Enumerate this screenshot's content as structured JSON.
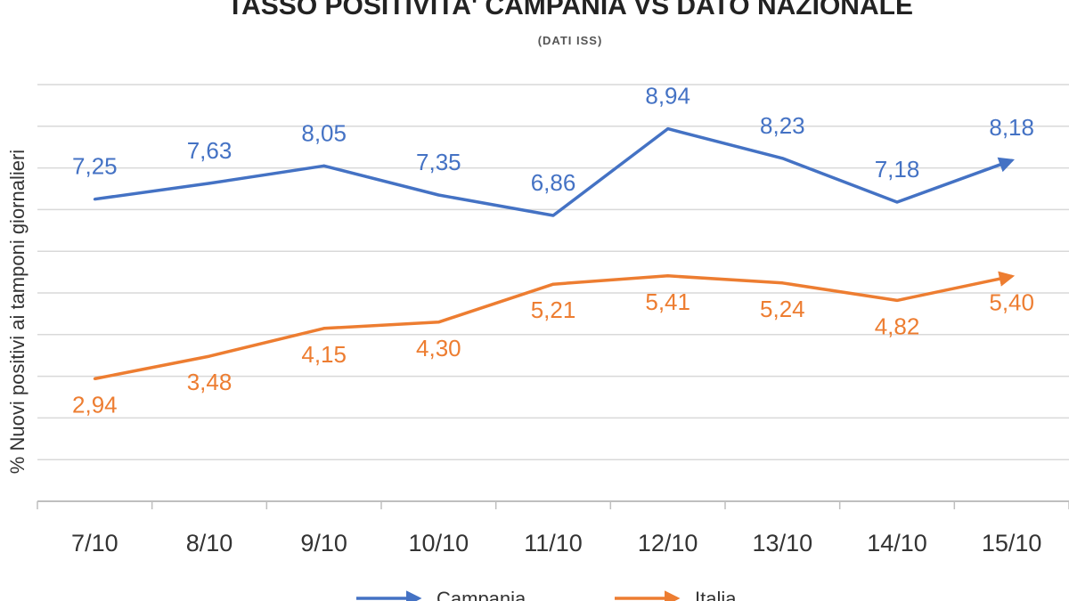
{
  "chart_data": {
    "type": "line",
    "title": "TASSO POSITIVITA' CAMPANIA VS DATO NAZIONALE",
    "subtitle": "(DATI ISS)",
    "xlabel": "",
    "ylabel": "% Nuovi positivi ai tamponi giornalieri",
    "categories": [
      "7/10",
      "8/10",
      "9/10",
      "10/10",
      "11/10",
      "12/10",
      "13/10",
      "14/10",
      "15/10"
    ],
    "series": [
      {
        "name": "Campania",
        "color": "#4472C4",
        "values": [
          7.25,
          7.63,
          8.05,
          7.35,
          6.86,
          8.94,
          8.23,
          7.18,
          8.18
        ],
        "labels": [
          "7,25",
          "7,63",
          "8,05",
          "7,35",
          "6,86",
          "8,94",
          "8,23",
          "7,18",
          "8,18"
        ]
      },
      {
        "name": "Italia",
        "color": "#ED7D31",
        "values": [
          2.94,
          3.48,
          4.15,
          4.3,
          5.21,
          5.41,
          5.24,
          4.82,
          5.4
        ],
        "labels": [
          "2,94",
          "3,48",
          "4,15",
          "4,30",
          "5,21",
          "5,41",
          "5,24",
          "4,82",
          "5,40"
        ]
      }
    ],
    "ylim": [
      0,
      10
    ],
    "grid": true,
    "legend": "bottom"
  }
}
